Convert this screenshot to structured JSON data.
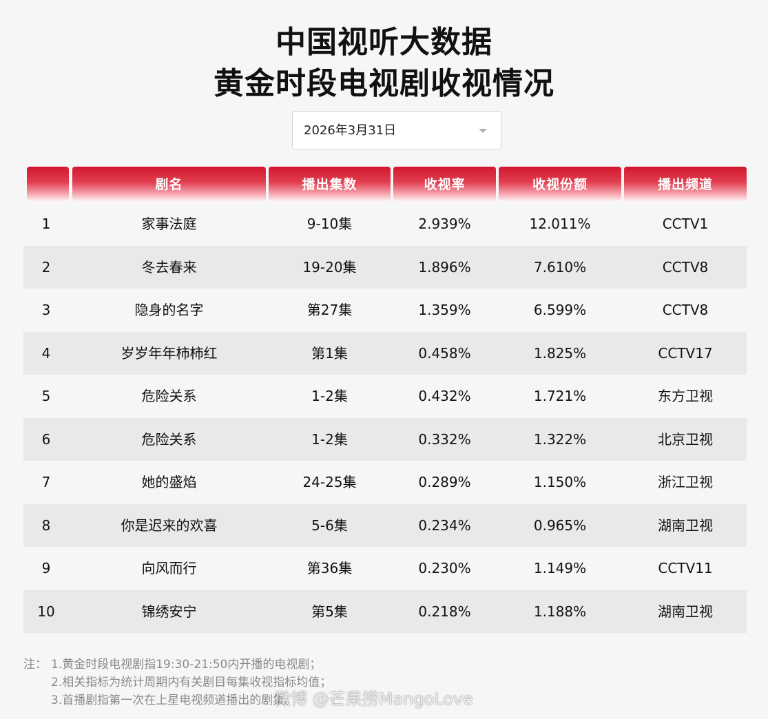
{
  "title": {
    "line1": "中国视听大数据",
    "line2": "黄金时段电视剧收视情况"
  },
  "date_select": {
    "value": "2026年3月31日"
  },
  "table": {
    "headers": [
      "",
      "剧名",
      "播出集数",
      "收视率",
      "收视份额",
      "播出频道"
    ],
    "rows": [
      {
        "rank": "1",
        "name": "家事法庭",
        "episodes": "9-10集",
        "rating": "2.939%",
        "share": "12.011%",
        "channel": "CCTV1"
      },
      {
        "rank": "2",
        "name": "冬去春来",
        "episodes": "19-20集",
        "rating": "1.896%",
        "share": "7.610%",
        "channel": "CCTV8"
      },
      {
        "rank": "3",
        "name": "隐身的名字",
        "episodes": "第27集",
        "rating": "1.359%",
        "share": "6.599%",
        "channel": "CCTV8"
      },
      {
        "rank": "4",
        "name": "岁岁年年柿柿红",
        "episodes": "第1集",
        "rating": "0.458%",
        "share": "1.825%",
        "channel": "CCTV17"
      },
      {
        "rank": "5",
        "name": "危险关系",
        "episodes": "1-2集",
        "rating": "0.432%",
        "share": "1.721%",
        "channel": "东方卫视"
      },
      {
        "rank": "6",
        "name": "危险关系",
        "episodes": "1-2集",
        "rating": "0.332%",
        "share": "1.322%",
        "channel": "北京卫视"
      },
      {
        "rank": "7",
        "name": "她的盛焰",
        "episodes": "24-25集",
        "rating": "0.289%",
        "share": "1.150%",
        "channel": "浙江卫视"
      },
      {
        "rank": "8",
        "name": "你是迟来的欢喜",
        "episodes": "5-6集",
        "rating": "0.234%",
        "share": "0.965%",
        "channel": "湖南卫视"
      },
      {
        "rank": "9",
        "name": "向风而行",
        "episodes": "第36集",
        "rating": "0.230%",
        "share": "1.149%",
        "channel": "CCTV11"
      },
      {
        "rank": "10",
        "name": "锦绣安宁",
        "episodes": "第5集",
        "rating": "0.218%",
        "share": "1.188%",
        "channel": "湖南卫视"
      }
    ]
  },
  "notes": {
    "prefix": "注：",
    "lines": [
      "1.黄金时段电视剧指19:30-21:50内开播的电视剧；",
      "2.相关指标为统计周期内有关剧目每集收视指标均值；",
      "3.首播剧指第一次在上星电视频道播出的剧集。"
    ]
  },
  "watermark": "微博 @芒果捞MangoLove",
  "colors": {
    "header_red": "#d3182e",
    "stripe_gray": "#e9e9e9",
    "background": "#f6f6f6"
  }
}
